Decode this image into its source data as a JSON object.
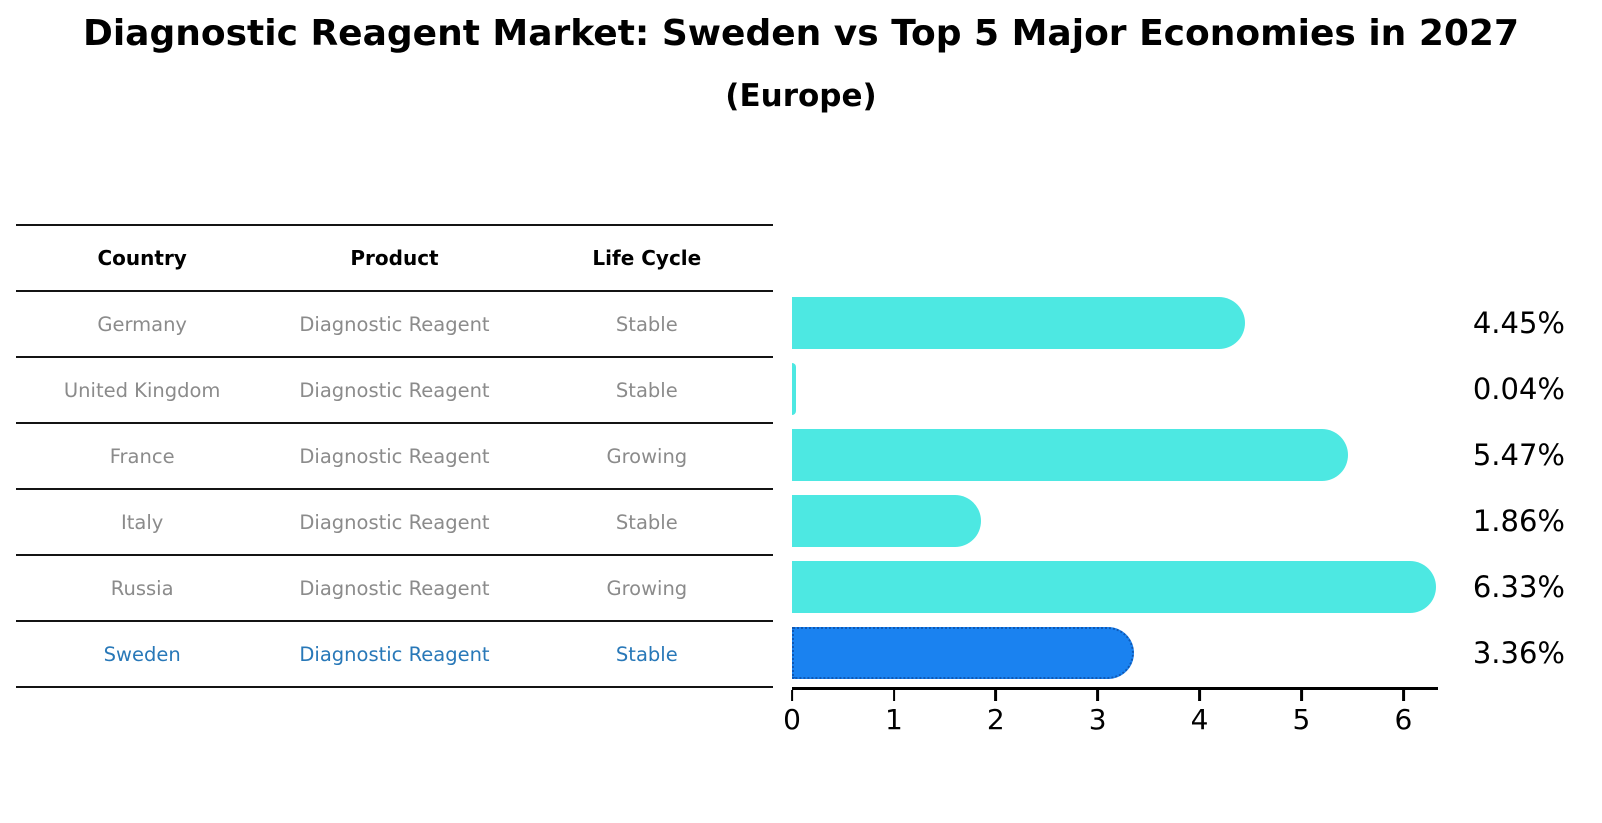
{
  "title": "Diagnostic Reagent Market: Sweden vs Top 5 Major Economies in 2027",
  "subtitle": "(Europe)",
  "table": {
    "headers": [
      "Country",
      "Product",
      "Life Cycle"
    ],
    "rows": [
      {
        "country": "Germany",
        "product": "Diagnostic Reagent",
        "life_cycle": "Stable",
        "highlighted": false
      },
      {
        "country": "United Kingdom",
        "product": "Diagnostic Reagent",
        "life_cycle": "Stable",
        "highlighted": false
      },
      {
        "country": "France",
        "product": "Diagnostic Reagent",
        "life_cycle": "Growing",
        "highlighted": false
      },
      {
        "country": "Italy",
        "product": "Diagnostic Reagent",
        "life_cycle": "Stable",
        "highlighted": false
      },
      {
        "country": "Russia",
        "product": "Diagnostic Reagent",
        "life_cycle": "Growing",
        "highlighted": false
      },
      {
        "country": "Sweden",
        "product": "Diagnostic Reagent",
        "life_cycle": "Stable",
        "highlighted": true
      }
    ]
  },
  "chart_data": {
    "type": "bar",
    "orientation": "horizontal",
    "title": "Diagnostic Reagent Market: Sweden vs Top 5 Major Economies in 2027",
    "subtitle": "(Europe)",
    "categories": [
      "Germany",
      "United Kingdom",
      "France",
      "Italy",
      "Russia",
      "Sweden"
    ],
    "values": [
      4.45,
      0.04,
      5.47,
      1.86,
      6.33,
      3.36
    ],
    "value_labels": [
      "4.45%",
      "0.04%",
      "5.47%",
      "1.86%",
      "6.33%",
      "3.36%"
    ],
    "unit": "%",
    "xticks": [
      "0",
      "1",
      "2",
      "3",
      "4",
      "5",
      "6"
    ],
    "xlim": [
      0,
      6.34
    ],
    "grid": false,
    "legend": "none",
    "highlighted_category": "Sweden",
    "colors": {
      "default_bar": "#4DE8E2",
      "highlight_bar": "#1A82F0",
      "highlight_bar_border": "#0D52AB",
      "highlight_text": "#2878B8",
      "row_text": "#8B8B8B",
      "axis": "#000000"
    }
  }
}
